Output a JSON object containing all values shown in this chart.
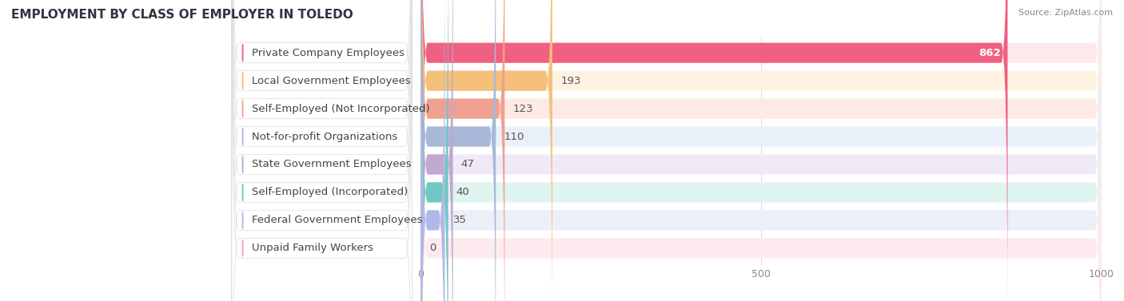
{
  "title": "EMPLOYMENT BY CLASS OF EMPLOYER IN TOLEDO",
  "source": "Source: ZipAtlas.com",
  "categories": [
    "Private Company Employees",
    "Local Government Employees",
    "Self-Employed (Not Incorporated)",
    "Not-for-profit Organizations",
    "State Government Employees",
    "Self-Employed (Incorporated)",
    "Federal Government Employees",
    "Unpaid Family Workers"
  ],
  "values": [
    862,
    193,
    123,
    110,
    47,
    40,
    35,
    0
  ],
  "bar_colors": [
    "#F06080",
    "#F5C07A",
    "#F0A090",
    "#A8B8D8",
    "#C0A8D0",
    "#70C8C0",
    "#B0B8E8",
    "#F8A0B8"
  ],
  "bar_bg_colors": [
    "#FDE8EC",
    "#FEF3E2",
    "#FDEAE4",
    "#EAF0F8",
    "#F0EAF8",
    "#E0F4F2",
    "#ECEEF8",
    "#FDEAEE"
  ],
  "xlim": [
    0,
    1000
  ],
  "xticks": [
    0,
    500,
    1000
  ],
  "label_fontsize": 9.5,
  "value_fontsize": 9.5,
  "title_fontsize": 11,
  "background_color": "#FFFFFF"
}
